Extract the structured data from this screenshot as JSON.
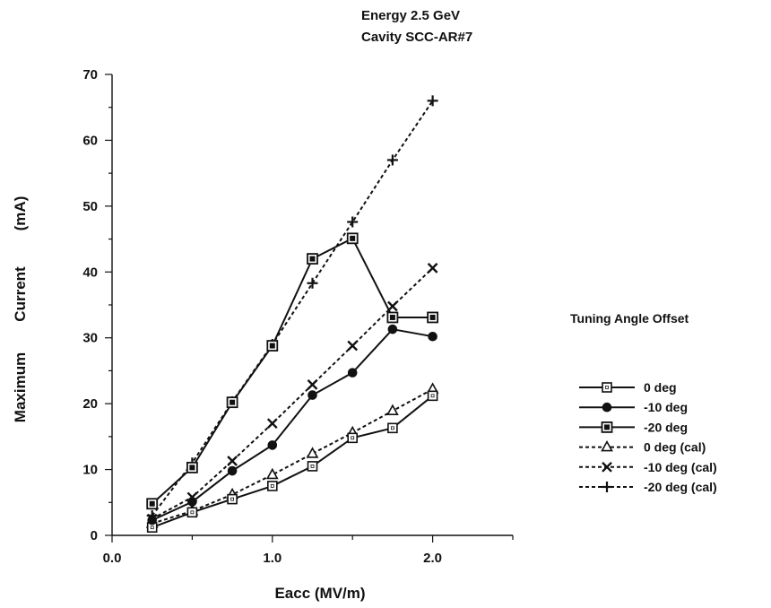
{
  "header": {
    "line1": "Energy 2.5 GeV",
    "line2": "Cavity SCC-AR#7"
  },
  "chart_data": {
    "type": "line",
    "xlabel": "Eacc (MV/m)",
    "ylabel": "Maximum Current (mA)",
    "ylabel_parts": [
      "Maximum",
      "Current",
      "(mA)"
    ],
    "xlim": [
      0,
      2.5
    ],
    "ylim": [
      0,
      70
    ],
    "x_ticks": [
      0,
      1,
      2
    ],
    "x_tick_labels": [
      "0.0",
      "1.0",
      "2.0"
    ],
    "x_minor_ticks": [
      0.5,
      1.5,
      2.5
    ],
    "y_ticks": [
      0,
      10,
      20,
      30,
      40,
      50,
      60,
      70
    ],
    "y_tick_labels": [
      "0",
      "10",
      "20",
      "30",
      "40",
      "50",
      "60",
      "70"
    ],
    "grid": false,
    "legend": {
      "title": "Tuning Angle Offset",
      "placement": "right"
    },
    "series": [
      {
        "name": "0 deg",
        "line": "solid",
        "marker": "open-square",
        "x": [
          0.25,
          0.5,
          0.75,
          1.0,
          1.25,
          1.5,
          1.75,
          2.0
        ],
        "y": [
          1.2,
          3.5,
          5.5,
          7.5,
          10.5,
          14.8,
          16.3,
          21.2
        ]
      },
      {
        "name": "-10 deg",
        "line": "solid",
        "marker": "filled-circle",
        "x": [
          0.25,
          0.5,
          0.75,
          1.0,
          1.25,
          1.5,
          1.75,
          2.0
        ],
        "y": [
          2.3,
          5.1,
          9.8,
          13.7,
          21.3,
          24.7,
          31.3,
          30.2
        ]
      },
      {
        "name": "-20 deg",
        "line": "solid",
        "marker": "boxed-square",
        "x": [
          0.25,
          0.5,
          0.75,
          1.0,
          1.25,
          1.5,
          1.75,
          2.0
        ],
        "y": [
          4.8,
          10.3,
          20.2,
          28.8,
          42.0,
          45.1,
          33.1,
          33.1
        ]
      },
      {
        "name": "0 deg (cal)",
        "line": "dashed",
        "marker": "triangle",
        "x": [
          0.25,
          0.5,
          0.75,
          1.0,
          1.25,
          1.5,
          1.75,
          2.0
        ],
        "y": [
          1.8,
          3.7,
          6.2,
          9.2,
          12.4,
          15.6,
          18.9,
          22.2
        ]
      },
      {
        "name": "-10 deg (cal)",
        "line": "dashed",
        "marker": "x",
        "x": [
          0.25,
          0.5,
          0.75,
          1.0,
          1.25,
          1.5,
          1.75,
          2.0
        ],
        "y": [
          2.5,
          5.8,
          11.3,
          17.0,
          22.9,
          28.8,
          34.8,
          40.6
        ]
      },
      {
        "name": "-20 deg (cal)",
        "line": "dashed",
        "marker": "plus",
        "x": [
          0.25,
          0.5,
          0.75,
          1.0,
          1.25,
          1.5,
          1.75,
          2.0
        ],
        "y": [
          3.0,
          11.0,
          20.3,
          29.0,
          38.3,
          47.6,
          57.0,
          66.0
        ]
      }
    ]
  }
}
